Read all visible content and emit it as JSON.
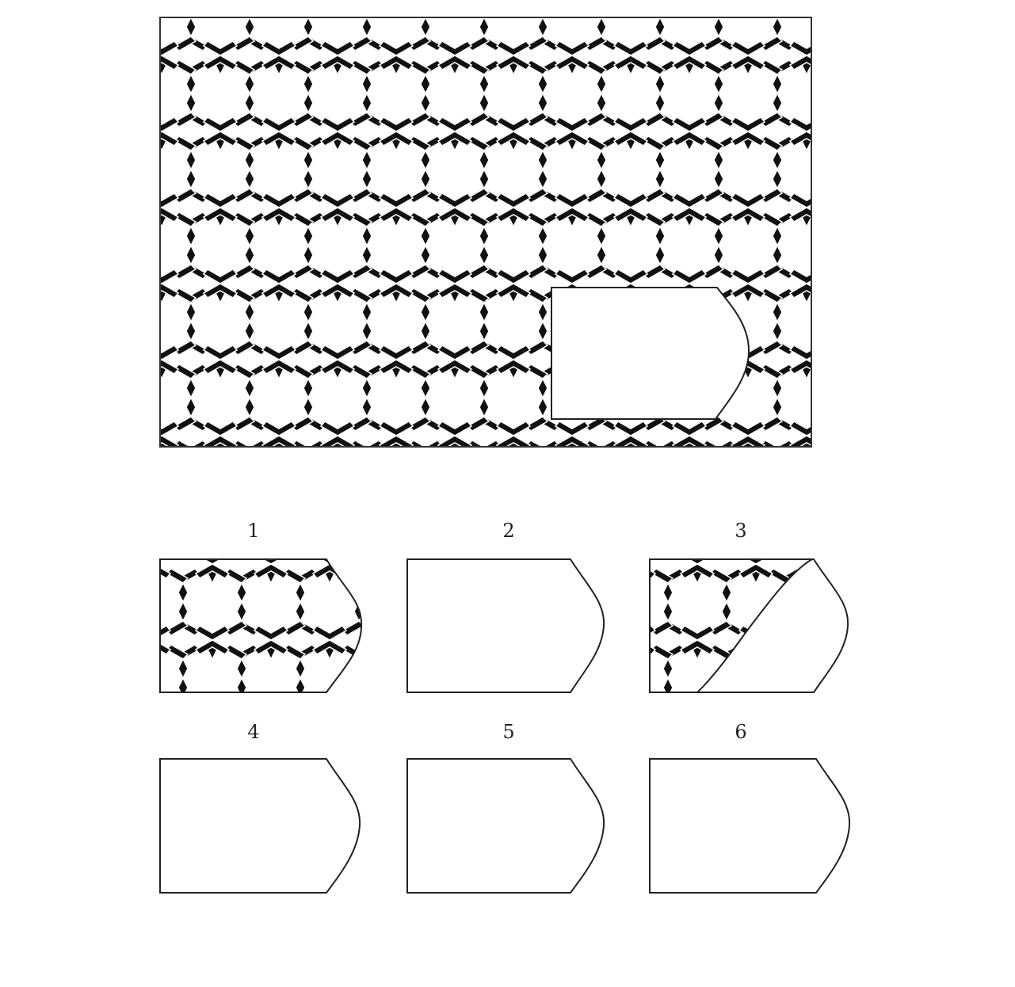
{
  "puzzle": {
    "main_pattern": "hexagram-lattice-with-missing-piece",
    "options": [
      {
        "label": "1",
        "content": "pattern-offset"
      },
      {
        "label": "2",
        "content": "blank"
      },
      {
        "label": "3",
        "content": "pattern-partial-curve"
      },
      {
        "label": "4",
        "content": "blank"
      },
      {
        "label": "5",
        "content": "blank"
      },
      {
        "label": "6",
        "content": "blank"
      }
    ]
  },
  "colors": {
    "ink": "#111111",
    "paper": "#ffffff",
    "frame": "#333333"
  }
}
